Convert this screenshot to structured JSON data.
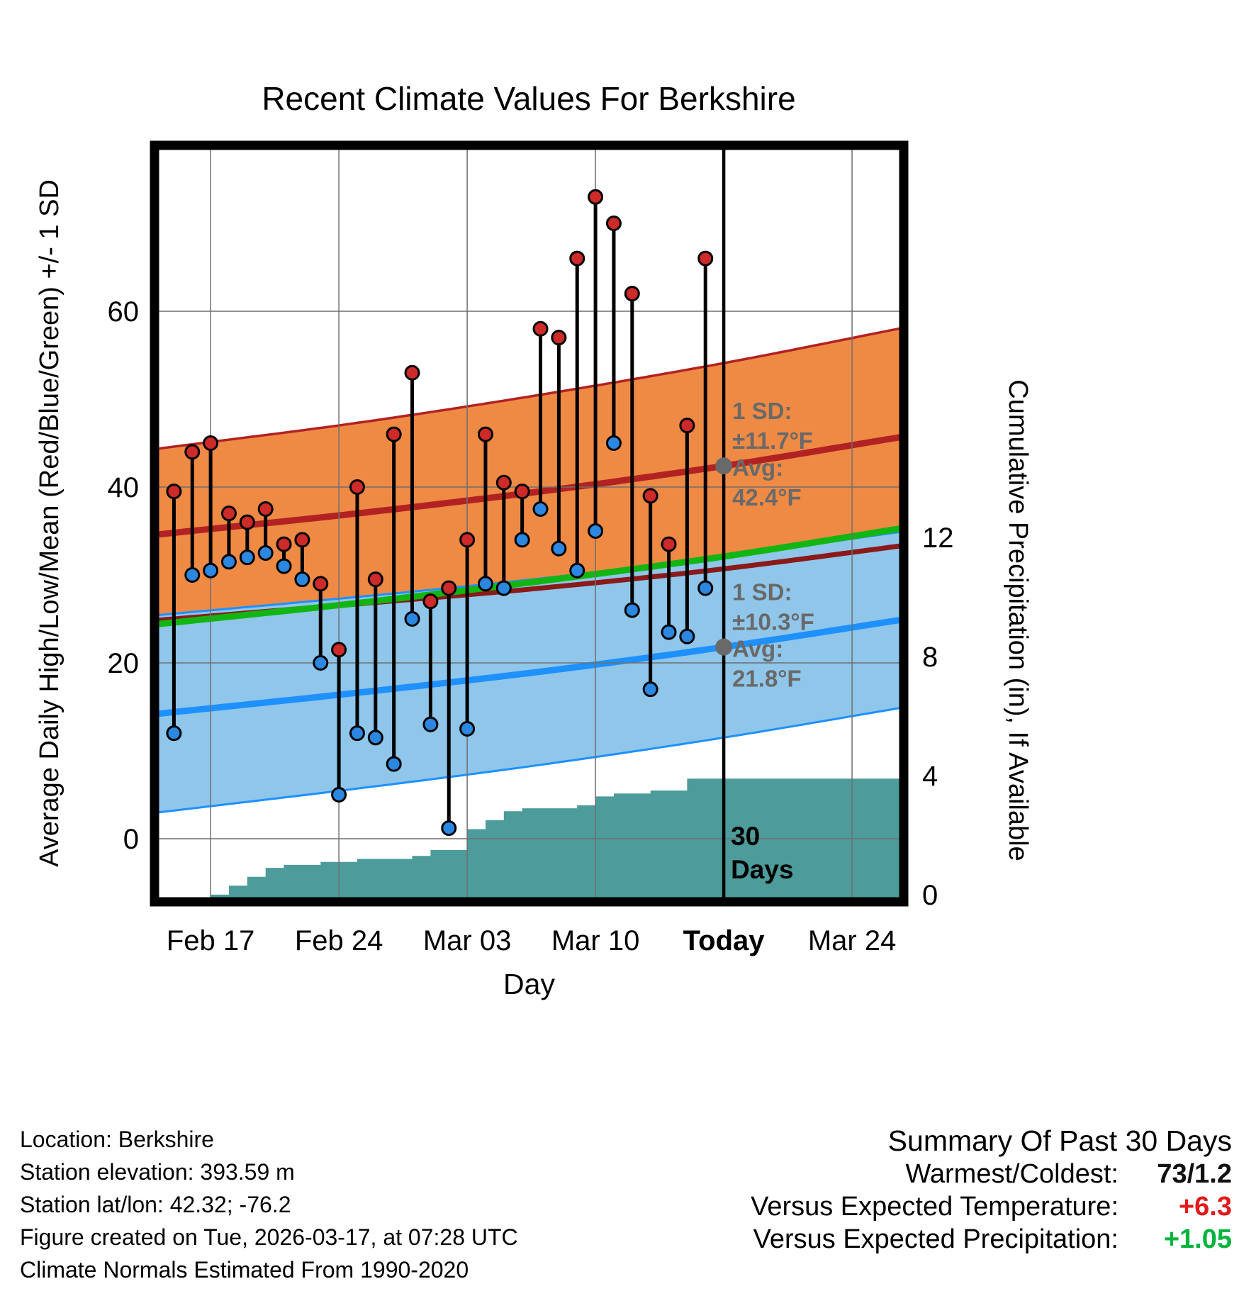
{
  "title": "Recent Climate Values For Berkshire",
  "chart_data": {
    "type": "line",
    "title": "Recent Climate Values For Berkshire",
    "xlabel": "Day",
    "ylabel_left": "Average Daily High/Low/Mean (Red/Blue/Green) +/- 1 SD",
    "ylabel_right": "Cumulative Precipitation (in), If Available",
    "x_range": [
      -1.06,
      39.82
    ],
    "x_tick_days": [
      2,
      9,
      16,
      23,
      30,
      37
    ],
    "x_tick_labels": [
      "Feb 17",
      "Feb 24",
      "Mar 03",
      "Mar 10",
      "Today",
      "Mar 24"
    ],
    "y_left_ticks": [
      0,
      20,
      40,
      60
    ],
    "y_left_range": [
      -7.18,
      78.87
    ],
    "y_right_ticks": [
      0,
      4,
      8,
      12
    ],
    "y_right_range": [
      -0.24,
      25.17
    ],
    "today_day": 30,
    "climatology": {
      "days": [
        0,
        10,
        20,
        30,
        40
      ],
      "avg_high": [
        34.8,
        37.0,
        39.5,
        42.4,
        45.8
      ],
      "sd_high": [
        9.8,
        10.3,
        11.0,
        11.7,
        12.4
      ],
      "avg_low": [
        14.4,
        16.6,
        19.0,
        21.8,
        25.0
      ],
      "sd_low": [
        11.2,
        10.9,
        10.6,
        10.3,
        10.0
      ],
      "mean": [
        24.6,
        26.8,
        29.3,
        32.1,
        35.4
      ]
    },
    "daily": {
      "start_day": 0,
      "dates": [
        "Feb 15",
        "Feb 16",
        "Feb 17",
        "Feb 18",
        "Feb 19",
        "Feb 20",
        "Feb 21",
        "Feb 22",
        "Feb 23",
        "Feb 24",
        "Feb 25",
        "Feb 26",
        "Feb 27",
        "Feb 28",
        "Mar 01",
        "Mar 02",
        "Mar 03",
        "Mar 04",
        "Mar 05",
        "Mar 06",
        "Mar 07",
        "Mar 08",
        "Mar 09",
        "Mar 10",
        "Mar 11",
        "Mar 12",
        "Mar 13",
        "Mar 14",
        "Mar 15",
        "Mar 16"
      ],
      "high": [
        39.5,
        44,
        45,
        37,
        36,
        37.5,
        33.5,
        34,
        29,
        21.5,
        40,
        29.5,
        46,
        53,
        27,
        28.5,
        34,
        46,
        40.5,
        39.5,
        58,
        57,
        66,
        73,
        70,
        62,
        39,
        33.5,
        47,
        66
      ],
      "low": [
        12,
        30,
        30.5,
        31.5,
        32,
        32.5,
        31,
        29.5,
        20,
        5,
        12,
        11.5,
        8.5,
        25,
        13,
        1.2,
        12.5,
        29,
        28.5,
        34,
        37.5,
        33,
        30.5,
        35,
        45,
        26,
        17,
        23.5,
        23,
        28.5
      ]
    },
    "precip": {
      "days": [
        2,
        3,
        4,
        5,
        6,
        7,
        8,
        9,
        10,
        11,
        12,
        13,
        14,
        15,
        16,
        17,
        18,
        19,
        20,
        21,
        22,
        23,
        24,
        25,
        26,
        27,
        28,
        29
      ],
      "cumulative": [
        0.0,
        0.3,
        0.6,
        0.9,
        1.0,
        1.0,
        1.1,
        1.1,
        1.2,
        1.2,
        1.2,
        1.3,
        1.5,
        1.5,
        2.2,
        2.5,
        2.8,
        2.9,
        2.9,
        2.9,
        3.0,
        3.3,
        3.4,
        3.4,
        3.5,
        3.5,
        3.9,
        3.9
      ]
    },
    "annotations": {
      "high": {
        "day": 30,
        "value": 42.4,
        "lines": [
          "1 SD:",
          "±11.7°F",
          "Avg:",
          "42.4°F"
        ]
      },
      "low": {
        "day": 30,
        "value": 21.8,
        "lines": [
          "1 SD:",
          "±10.3°F",
          "Avg:",
          "21.8°F"
        ]
      },
      "window_label": [
        "30",
        "Days"
      ]
    },
    "colors": {
      "high_band": "#EF8A45",
      "high_line": "#B22222",
      "high_band_edge": "#8B1A1A",
      "low_band": "#8FC6EA",
      "low_line": "#1E90FF",
      "mean_line": "#12B512",
      "precip_fill": "#4D9B9B",
      "stem": "#000000",
      "high_dot": "#CD2A2A",
      "low_dot": "#2B87E0",
      "annotation": "#696969",
      "grid": "#6F6F6F",
      "frame": "#000000"
    }
  },
  "footer_left": {
    "lines": [
      "Location: Berkshire",
      "Station elevation: 393.59 m",
      "Station lat/lon: 42.32; -76.2",
      "Figure created on Tue, 2026-03-17, at 07:28 UTC",
      "Climate Normals Estimated From 1990-2020"
    ]
  },
  "summary": {
    "title": "Summary Of Past 30 Days",
    "rows": [
      {
        "label": "Warmest/Coldest:",
        "value": "73/1.2",
        "color": "#111111"
      },
      {
        "label": "Versus Expected Temperature:",
        "value": "+6.3",
        "color": "#E01A1A"
      },
      {
        "label": "Versus Expected Precipitation:",
        "value": "+1.05",
        "color": "#00B43C"
      }
    ]
  }
}
